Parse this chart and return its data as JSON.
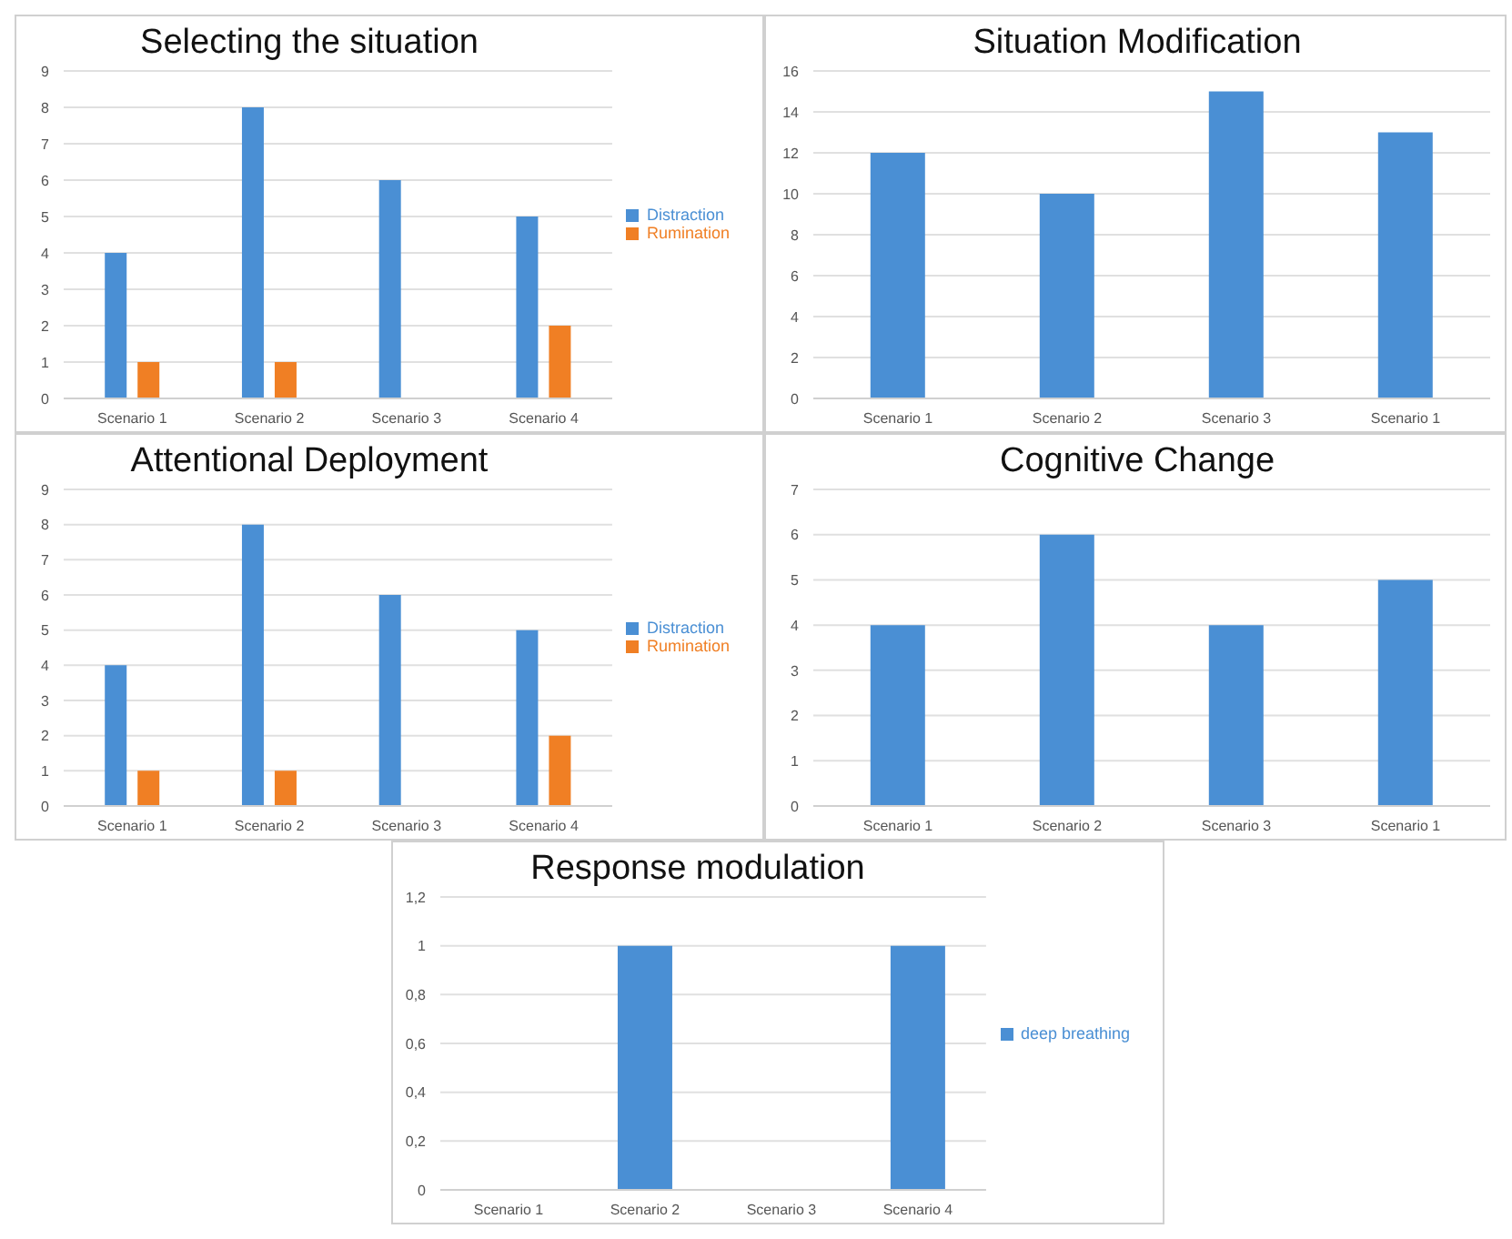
{
  "chart_data": [
    {
      "type": "bar",
      "title": "Selecting the situation",
      "categories": [
        "Scenario 1",
        "Scenario 2",
        "Scenario 3",
        "Scenario 4"
      ],
      "series": [
        {
          "name": "Distraction",
          "color": "#4a8fd4",
          "values": [
            4,
            8,
            6,
            5
          ]
        },
        {
          "name": "Rumination",
          "color": "#f07f24",
          "values": [
            1,
            1,
            0,
            2
          ]
        }
      ],
      "ylim": [
        0,
        9
      ],
      "yticks": [
        0,
        1,
        2,
        3,
        4,
        5,
        6,
        7,
        8,
        9
      ],
      "grid": "y",
      "legend": "right"
    },
    {
      "type": "bar",
      "title": "Situation Modification",
      "categories": [
        "Scenario 1",
        "Scenario 2",
        "Scenario 3",
        "Scenario 1"
      ],
      "series": [
        {
          "color": "#4a8fd4",
          "values": [
            12,
            10,
            15,
            13
          ]
        }
      ],
      "ylim": [
        0,
        16
      ],
      "yticks": [
        0,
        2,
        4,
        6,
        8,
        10,
        12,
        14,
        16
      ],
      "grid": "y"
    },
    {
      "type": "bar",
      "title": "Attentional Deployment",
      "categories": [
        "Scenario 1",
        "Scenario 2",
        "Scenario 3",
        "Scenario 4"
      ],
      "series": [
        {
          "name": "Distraction",
          "color": "#4a8fd4",
          "values": [
            4,
            8,
            6,
            5
          ]
        },
        {
          "name": "Rumination",
          "color": "#f07f24",
          "values": [
            1,
            1,
            0,
            2
          ]
        }
      ],
      "ylim": [
        0,
        9
      ],
      "yticks": [
        0,
        1,
        2,
        3,
        4,
        5,
        6,
        7,
        8,
        9
      ],
      "grid": "y",
      "legend": "right"
    },
    {
      "type": "bar",
      "title": "Cognitive Change",
      "categories": [
        "Scenario 1",
        "Scenario 2",
        "Scenario 3",
        "Scenario 1"
      ],
      "series": [
        {
          "color": "#4a8fd4",
          "values": [
            4,
            6,
            4,
            5
          ]
        }
      ],
      "ylim": [
        0,
        7
      ],
      "yticks": [
        0,
        1,
        2,
        3,
        4,
        5,
        6,
        7
      ],
      "grid": "y"
    },
    {
      "type": "bar",
      "title": "Response modulation",
      "categories": [
        "Scenario 1",
        "Scenario 2",
        "Scenario 3",
        "Scenario 4"
      ],
      "series": [
        {
          "name": "deep breathing",
          "color": "#4a8fd4",
          "values": [
            0,
            1,
            0,
            1
          ]
        }
      ],
      "ylim": [
        0,
        1.2
      ],
      "yticks": [
        0,
        {
          "value": 0.2,
          "label": "0,2"
        },
        {
          "value": 0.4,
          "label": "0,4"
        },
        {
          "value": 0.6,
          "label": "0,6"
        },
        {
          "value": 0.8,
          "label": "0,8"
        },
        1,
        {
          "value": 1.2,
          "label": "1,2"
        }
      ],
      "grid": "y",
      "legend": "right"
    }
  ]
}
